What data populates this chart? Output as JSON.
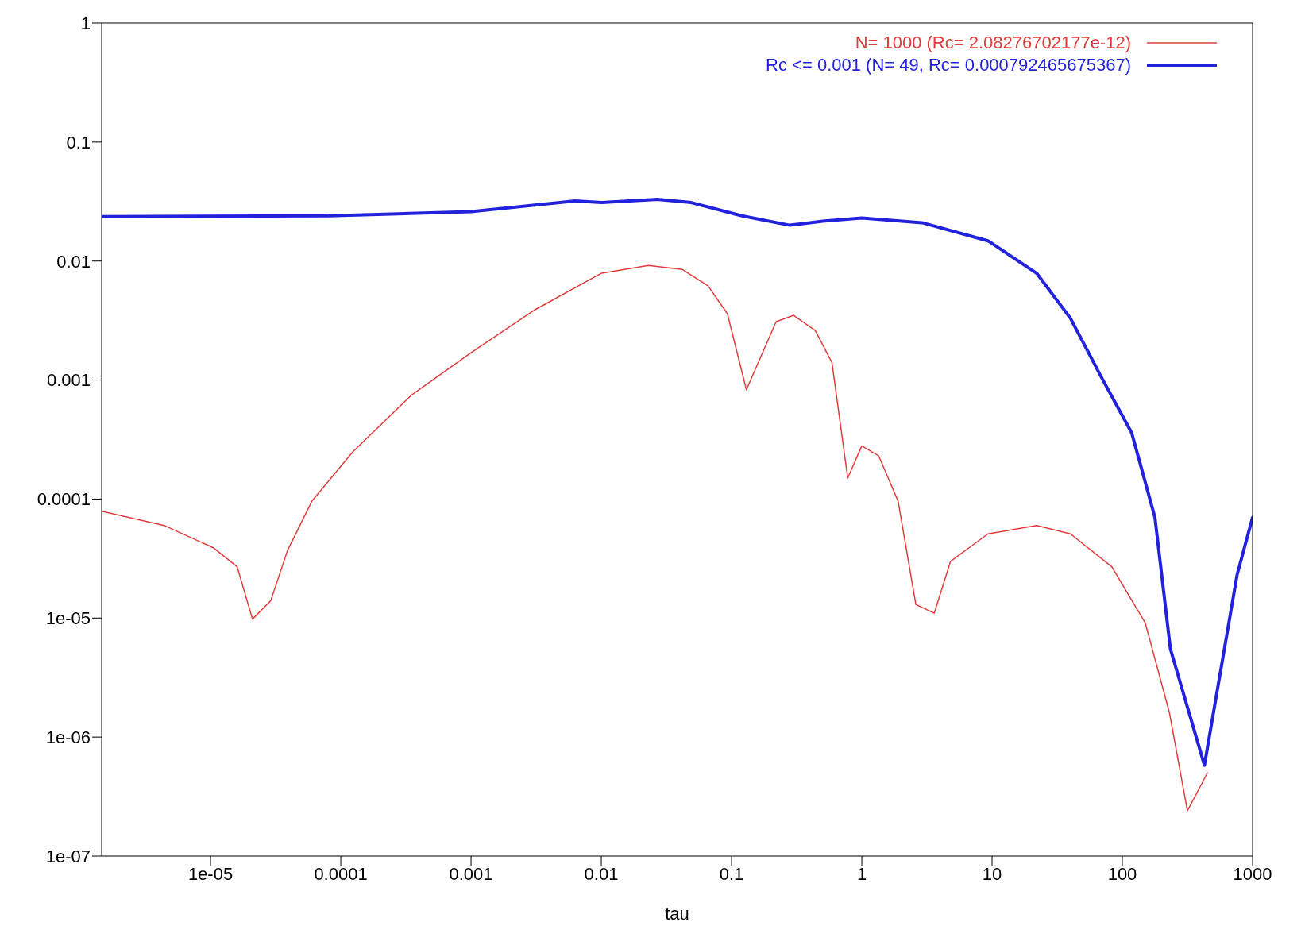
{
  "chart_data": {
    "type": "line",
    "xlabel": "tau",
    "log": "xy",
    "legend": "top right",
    "grid": false,
    "marker": "none",
    "line_style": "solid",
    "xlim": [
      1.46e-06,
      1000
    ],
    "ylim": [
      1e-07,
      1
    ],
    "xticks": [
      {
        "value": 1e-05,
        "label": "1e-05"
      },
      0.0001,
      0.001,
      0.01,
      0.1,
      1,
      10,
      100,
      1000
    ],
    "yticks": [
      {
        "value": 1e-07,
        "label": "1e-07"
      },
      {
        "value": 1e-06,
        "label": "1e-06"
      },
      {
        "value": 1e-05,
        "label": "1e-05"
      },
      0.0001,
      0.001,
      0.01,
      0.1,
      1
    ],
    "series": [
      {
        "name": "N= 1000 (Rc= 2.08276702177e-12)",
        "color": "#e03c3c",
        "x": [
          1.46e-06,
          4.4e-06,
          1.05e-05,
          1.6e-05,
          2.1e-05,
          2.9e-05,
          3.9e-05,
          6e-05,
          0.000124,
          0.00035,
          0.001,
          0.0031,
          0.01,
          0.023,
          0.042,
          0.066,
          0.093,
          0.13,
          0.22,
          0.3,
          0.44,
          0.59,
          0.78,
          1,
          1.35,
          1.9,
          2.6,
          3.6,
          4.8,
          9.3,
          22,
          40,
          83,
          150,
          230,
          316,
          450
        ],
        "values": [
          7.9e-05,
          6e-05,
          3.9e-05,
          2.7e-05,
          9.8e-06,
          1.4e-05,
          3.7e-05,
          9.6e-05,
          0.00025,
          0.00075,
          0.0017,
          0.0039,
          0.0079,
          0.0092,
          0.0085,
          0.0062,
          0.0036,
          0.00083,
          0.0031,
          0.0035,
          0.0026,
          0.0014,
          0.00015,
          0.00028,
          0.00023,
          9.6e-05,
          1.3e-05,
          1.1e-05,
          3e-05,
          5.1e-05,
          6e-05,
          5.1e-05,
          2.7e-05,
          9.1e-06,
          1.6e-06,
          2.4e-07,
          5e-07
        ]
      },
      {
        "name": "Rc <= 0.001 (N= 49, Rc= 0.000792465675367)",
        "color": "#2222dd",
        "x": [
          1.46e-06,
          8.1e-05,
          0.001,
          0.0063,
          0.01,
          0.027,
          0.049,
          0.12,
          0.28,
          0.5,
          1,
          2.9,
          9.3,
          22,
          40,
          71,
          118,
          178,
          234,
          427,
          760,
          1000
        ],
        "values": [
          0.0236,
          0.024,
          0.026,
          0.032,
          0.031,
          0.033,
          0.031,
          0.024,
          0.02,
          0.0216,
          0.023,
          0.021,
          0.0148,
          0.0079,
          0.0033,
          0.001,
          0.00036,
          7e-05,
          5.5e-06,
          5.8e-07,
          2.3e-05,
          7e-05
        ]
      }
    ]
  }
}
